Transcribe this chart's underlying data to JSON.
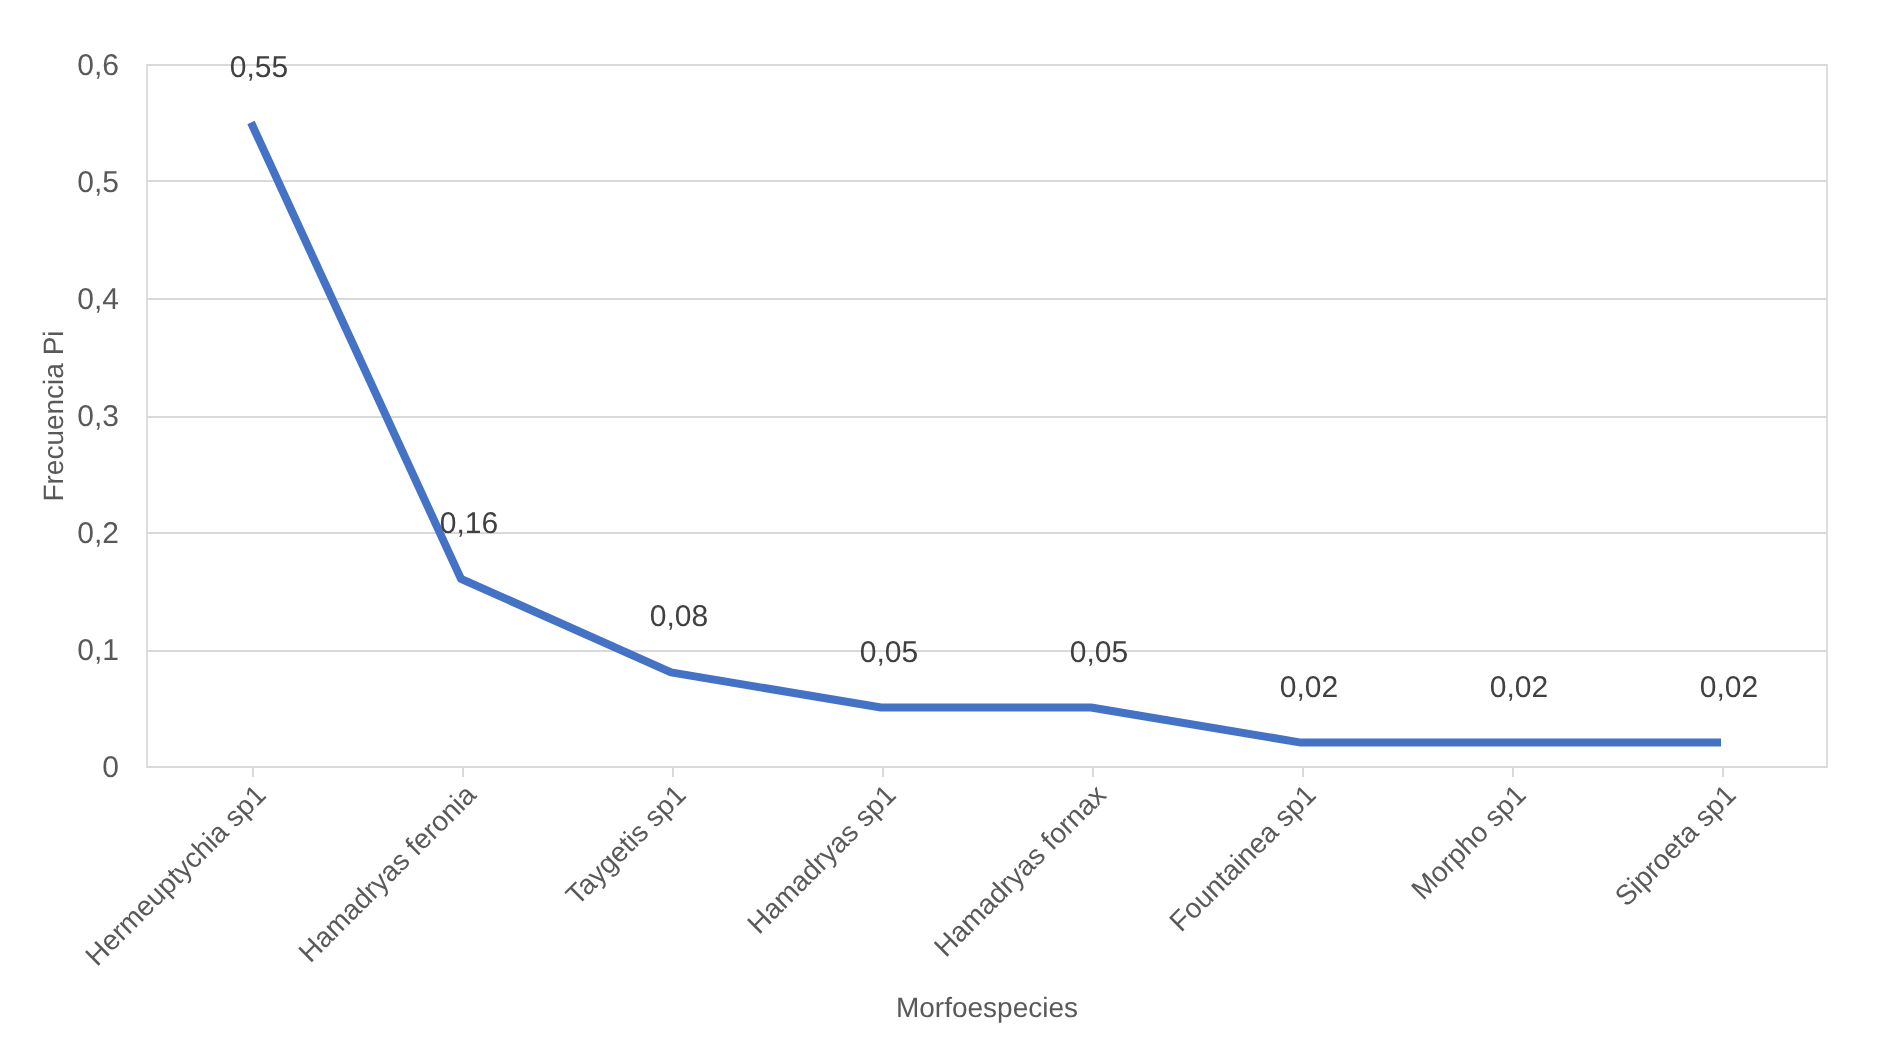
{
  "chart_data": {
    "type": "line",
    "xlabel": "Morfoespecies",
    "ylabel": "Frecuencia Pi",
    "categories": [
      "Hermeuptychia sp1",
      "Hamadryas feronia",
      "Taygetis sp1",
      "Hamadryas sp1",
      "Hamadryas fornax",
      "Fountainea sp1",
      "Morpho sp1",
      "Siproeta sp1"
    ],
    "series": [
      {
        "color": "#4472c4",
        "values": [
          0.55,
          0.16,
          0.08,
          0.05,
          0.05,
          0.02,
          0.02,
          0.02
        ],
        "value_labels": [
          "0,55",
          "0,16",
          "0,08",
          "0,05",
          "0,05",
          "0,02",
          "0,02",
          "0,02"
        ]
      }
    ],
    "ylim": [
      0,
      0.6
    ],
    "yticks": [
      0,
      {
        "value": 0.1,
        "label": "0,1"
      },
      {
        "value": 0.2,
        "label": "0,2"
      },
      {
        "value": 0.3,
        "label": "0,3"
      },
      {
        "value": 0.4,
        "label": "0,4"
      },
      {
        "value": 0.5,
        "label": "0,5"
      },
      {
        "value": 0.6,
        "label": "0,6"
      }
    ],
    "grid": "y",
    "marker": "none",
    "line_style": "solid"
  }
}
